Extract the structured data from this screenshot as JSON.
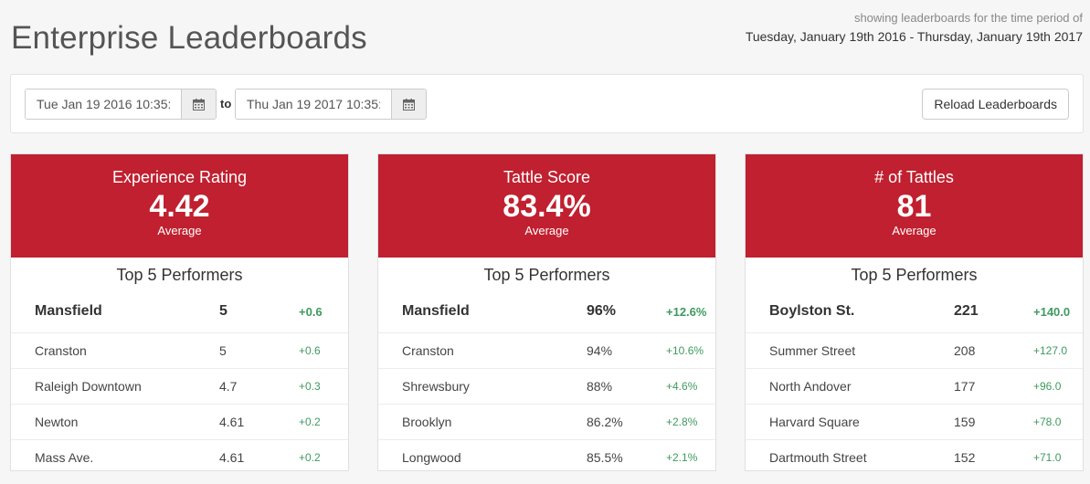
{
  "page_title": "Enterprise Leaderboards",
  "period": {
    "caption": "showing leaderboards for the time period of",
    "range": "Tuesday, January 19th 2016 - Thursday, January 19th 2017"
  },
  "filters": {
    "from_value": "Tue Jan 19 2016 10:35:",
    "to_label": "to",
    "to_value": "Thu Jan 19 2017 10:35:",
    "calendar_icon": "calendar-icon",
    "reload_label": "Reload Leaderboards"
  },
  "colors": {
    "accent": "#c0202f",
    "positive": "#3f9a5f"
  },
  "cards": [
    {
      "metric": "Experience Rating",
      "value": "4.42",
      "sub": "Average",
      "top_title": "Top 5 Performers",
      "rows": [
        {
          "name": "Mansfield",
          "value": "5",
          "delta": "+0.6"
        },
        {
          "name": "Cranston",
          "value": "5",
          "delta": "+0.6"
        },
        {
          "name": "Raleigh Downtown",
          "value": "4.7",
          "delta": "+0.3"
        },
        {
          "name": "Newton",
          "value": "4.61",
          "delta": "+0.2"
        },
        {
          "name": "Mass Ave.",
          "value": "4.61",
          "delta": "+0.2"
        }
      ]
    },
    {
      "metric": "Tattle Score",
      "value": "83.4%",
      "sub": "Average",
      "top_title": "Top 5 Performers",
      "rows": [
        {
          "name": "Mansfield",
          "value": "96%",
          "delta": "+12.6%"
        },
        {
          "name": "Cranston",
          "value": "94%",
          "delta": "+10.6%"
        },
        {
          "name": "Shrewsbury",
          "value": "88%",
          "delta": "+4.6%"
        },
        {
          "name": "Brooklyn",
          "value": "86.2%",
          "delta": "+2.8%"
        },
        {
          "name": "Longwood",
          "value": "85.5%",
          "delta": "+2.1%"
        }
      ]
    },
    {
      "metric": "# of Tattles",
      "value": "81",
      "sub": "Average",
      "top_title": "Top 5 Performers",
      "rows": [
        {
          "name": "Boylston St.",
          "value": "221",
          "delta": "+140.0"
        },
        {
          "name": "Summer Street",
          "value": "208",
          "delta": "+127.0"
        },
        {
          "name": "North Andover",
          "value": "177",
          "delta": "+96.0"
        },
        {
          "name": "Harvard Square",
          "value": "159",
          "delta": "+78.0"
        },
        {
          "name": "Dartmouth Street",
          "value": "152",
          "delta": "+71.0"
        }
      ]
    }
  ]
}
